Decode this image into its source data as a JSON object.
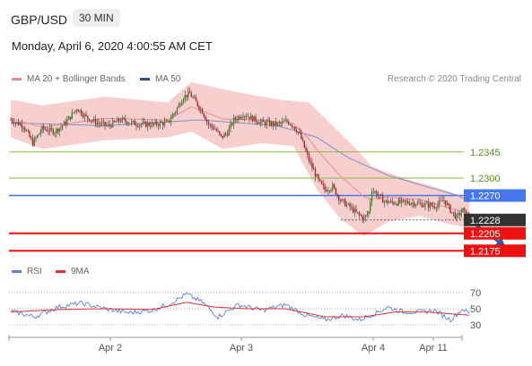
{
  "header": {
    "symbol": "GBP/USD",
    "timeframe": "30 MIN",
    "datetime": "Monday, April 6, 2020 4:00:55 AM CET"
  },
  "legend": {
    "ma20": "MA 20 + Bollinger Bands",
    "ma50": "MA 50",
    "credit": "Research © 2020 Trading Central"
  },
  "rsi_legend": {
    "rsi": "RSI",
    "ma9": "9MA"
  },
  "colors": {
    "support": "#ee1111",
    "pivot": "#4477ee",
    "resistance": "#8ab83a",
    "band": "#f6c7c7",
    "ma50": "#8090c0",
    "last": "#333333",
    "rsi": "#5a7fe0",
    "rsi_ma": "#e03030"
  },
  "chart_data": {
    "type": "line",
    "x_ticks": [
      "Apr 2",
      "Apr 3",
      "Apr 4",
      "Apr 11"
    ],
    "ylim": [
      2164,
      2452
    ],
    "levels": [
      {
        "value": 1.2345,
        "label": "1.2345",
        "kind": "resistance"
      },
      {
        "value": 1.23,
        "label": "1.2300",
        "kind": "resistance"
      },
      {
        "value": 1.227,
        "label": "1.2270",
        "kind": "pivot"
      },
      {
        "value": 1.2228,
        "label": "1.2228",
        "kind": "last"
      },
      {
        "value": 1.2205,
        "label": "1.2205",
        "kind": "support"
      },
      {
        "value": 1.2175,
        "label": "1.2175",
        "kind": "support"
      }
    ],
    "price_key": [
      [
        0,
        1.24
      ],
      [
        8,
        1.239
      ],
      [
        14,
        1.236
      ],
      [
        20,
        1.2385
      ],
      [
        28,
        1.238
      ],
      [
        35,
        1.2395
      ],
      [
        42,
        1.242
      ],
      [
        48,
        1.2405
      ],
      [
        55,
        1.2395
      ],
      [
        62,
        1.239
      ],
      [
        70,
        1.24
      ],
      [
        80,
        1.2393
      ],
      [
        90,
        1.2392
      ],
      [
        100,
        1.2395
      ],
      [
        106,
        1.242
      ],
      [
        110,
        1.244
      ],
      [
        114,
        1.2445
      ],
      [
        118,
        1.243
      ],
      [
        122,
        1.2415
      ],
      [
        126,
        1.2392
      ],
      [
        130,
        1.2385
      ],
      [
        134,
        1.237
      ],
      [
        138,
        1.2378
      ],
      [
        142,
        1.24
      ],
      [
        148,
        1.241
      ],
      [
        152,
        1.2405
      ],
      [
        160,
        1.2395
      ],
      [
        170,
        1.2392
      ],
      [
        176,
        1.2398
      ],
      [
        180,
        1.239
      ],
      [
        184,
        1.2375
      ],
      [
        190,
        1.233
      ],
      [
        196,
        1.2295
      ],
      [
        200,
        1.228
      ],
      [
        205,
        1.2285
      ],
      [
        210,
        1.2262
      ],
      [
        216,
        1.225
      ],
      [
        220,
        1.224
      ],
      [
        225,
        1.223
      ],
      [
        228,
        1.2242
      ],
      [
        230,
        1.228
      ],
      [
        234,
        1.227
      ],
      [
        238,
        1.226
      ],
      [
        242,
        1.2258
      ],
      [
        248,
        1.2258
      ],
      [
        255,
        1.2258
      ],
      [
        262,
        1.2255
      ],
      [
        270,
        1.2252
      ],
      [
        276,
        1.2262
      ],
      [
        280,
        1.2245
      ],
      [
        284,
        1.2232
      ],
      [
        288,
        1.2245
      ],
      [
        292,
        1.2228
      ]
    ],
    "ma50_key": [
      [
        0,
        1.2395
      ],
      [
        60,
        1.239
      ],
      [
        120,
        1.24
      ],
      [
        170,
        1.239
      ],
      [
        195,
        1.237
      ],
      [
        215,
        1.2335
      ],
      [
        240,
        1.2305
      ],
      [
        265,
        1.2285
      ],
      [
        285,
        1.227
      ],
      [
        292,
        1.2258
      ]
    ],
    "bb_upper_key": [
      [
        0,
        1.2435
      ],
      [
        20,
        1.2425
      ],
      [
        60,
        1.244
      ],
      [
        100,
        1.243
      ],
      [
        115,
        1.2465
      ],
      [
        140,
        1.245
      ],
      [
        170,
        1.2435
      ],
      [
        190,
        1.243
      ],
      [
        205,
        1.239
      ],
      [
        220,
        1.235
      ],
      [
        230,
        1.232
      ],
      [
        250,
        1.23
      ],
      [
        270,
        1.2285
      ],
      [
        292,
        1.2265
      ]
    ],
    "bb_lower_key": [
      [
        0,
        1.237
      ],
      [
        20,
        1.235
      ],
      [
        60,
        1.2365
      ],
      [
        100,
        1.237
      ],
      [
        115,
        1.238
      ],
      [
        135,
        1.235
      ],
      [
        160,
        1.236
      ],
      [
        180,
        1.2355
      ],
      [
        195,
        1.228
      ],
      [
        210,
        1.223
      ],
      [
        225,
        1.22
      ],
      [
        240,
        1.2225
      ],
      [
        260,
        1.2235
      ],
      [
        280,
        1.222
      ],
      [
        292,
        1.2215
      ]
    ],
    "projection": {
      "from": [
        292,
        1.2228
      ],
      "to": [
        315,
        1.2182
      ]
    },
    "rsi_levels": [
      {
        "value": 70,
        "label": "70"
      },
      {
        "value": 50,
        "label": "50"
      },
      {
        "value": 30,
        "label": "30"
      }
    ],
    "rsi_key": [
      [
        0,
        47
      ],
      [
        15,
        40
      ],
      [
        30,
        52
      ],
      [
        45,
        57
      ],
      [
        60,
        50
      ],
      [
        75,
        45
      ],
      [
        90,
        48
      ],
      [
        100,
        55
      ],
      [
        112,
        68
      ],
      [
        122,
        58
      ],
      [
        132,
        40
      ],
      [
        145,
        55
      ],
      [
        160,
        48
      ],
      [
        175,
        55
      ],
      [
        188,
        42
      ],
      [
        200,
        36
      ],
      [
        212,
        42
      ],
      [
        222,
        36
      ],
      [
        232,
        44
      ],
      [
        240,
        52
      ],
      [
        250,
        46
      ],
      [
        260,
        46
      ],
      [
        270,
        48
      ],
      [
        280,
        36
      ],
      [
        288,
        50
      ],
      [
        292,
        44
      ]
    ],
    "rsi_ma_key": [
      [
        0,
        46
      ],
      [
        30,
        49
      ],
      [
        60,
        50
      ],
      [
        90,
        49
      ],
      [
        112,
        58
      ],
      [
        130,
        52
      ],
      [
        150,
        50
      ],
      [
        175,
        50
      ],
      [
        200,
        40
      ],
      [
        225,
        40
      ],
      [
        245,
        46
      ],
      [
        265,
        46
      ],
      [
        285,
        43
      ],
      [
        292,
        42
      ]
    ]
  }
}
